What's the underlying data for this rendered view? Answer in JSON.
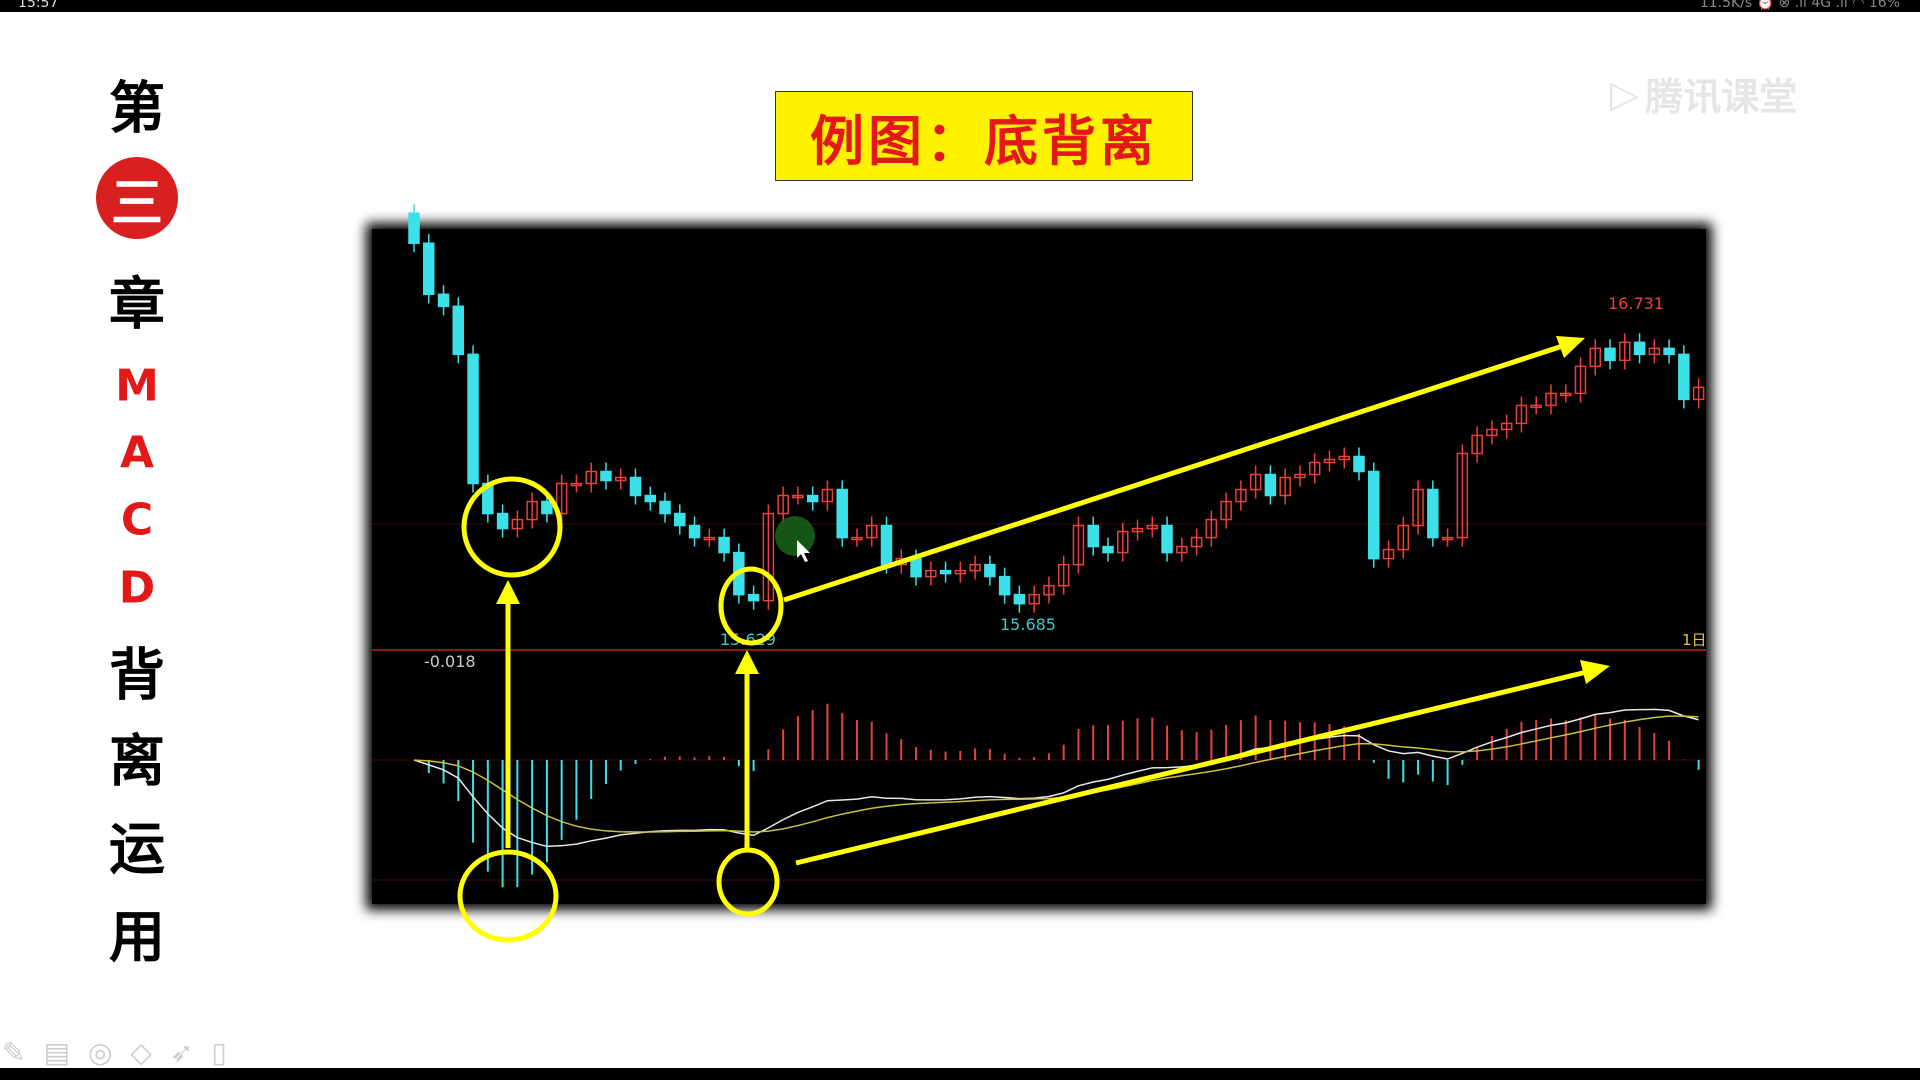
{
  "status_bar": {
    "time": "15:57",
    "right": "11.5K/s ⏰ ⊗ .ıl 4G .ıl ◠ 16%"
  },
  "side_title": [
    "第",
    "三",
    "章",
    "M",
    "A",
    "C",
    "D",
    "背",
    "离",
    "运",
    "用"
  ],
  "slide_title": "例图：底背离",
  "watermark": "腾讯课堂",
  "tools": [
    "pen-icon",
    "whiteboard-icon",
    "laser-icon",
    "eraser-icon",
    "pointer-icon",
    "remote-icon"
  ],
  "chart_data": {
    "type": "candlestick",
    "labels": {
      "high": "16.731",
      "low1": "15.629",
      "low2": "15.685",
      "macd_value": "-0.018",
      "period": "1日"
    },
    "closes": [
      16.94,
      16.77,
      16.73,
      16.57,
      16.14,
      16.04,
      15.99,
      16.02,
      16.08,
      16.04,
      16.14,
      16.14,
      16.18,
      16.15,
      16.16,
      16.1,
      16.08,
      16.04,
      16.0,
      15.96,
      15.96,
      15.91,
      15.77,
      15.75,
      16.04,
      16.1,
      16.1,
      16.08,
      16.12,
      15.96,
      15.96,
      16.0,
      15.87,
      15.89,
      15.83,
      15.85,
      15.84,
      15.85,
      15.87,
      15.83,
      15.77,
      15.74,
      15.77,
      15.8,
      15.87,
      16.0,
      15.93,
      15.91,
      15.98,
      15.99,
      16.0,
      15.91,
      15.93,
      15.96,
      16.02,
      16.08,
      16.12,
      16.17,
      16.1,
      16.16,
      16.17,
      16.21,
      16.22,
      16.23,
      16.18,
      15.89,
      15.92,
      16.0,
      16.12,
      15.96,
      15.96,
      16.24,
      16.3,
      16.32,
      16.34,
      16.4,
      16.4,
      16.44,
      16.44,
      16.53,
      16.59,
      16.55,
      16.61,
      16.57,
      16.59,
      16.57,
      16.42,
      16.46
    ],
    "colors": {
      "up": "#e8403a",
      "down": "#3ce0e8",
      "annotation": "#ffff00",
      "dif": "#e8e8e8",
      "dea": "#c8c040"
    }
  }
}
